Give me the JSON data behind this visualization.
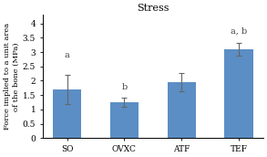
{
  "title": "Stress",
  "categories": [
    "SO",
    "OVXC",
    "ATF",
    "TEF"
  ],
  "values": [
    1.7,
    1.25,
    1.95,
    3.1
  ],
  "errors": [
    0.5,
    0.15,
    0.32,
    0.22
  ],
  "bar_color": "#5b8ec4",
  "error_color": "#666666",
  "ylabel_line1": "Force implied to a unit area",
  "ylabel_line2": "of the bone (MPa)",
  "ylim": [
    0,
    4.3
  ],
  "yticks": [
    0,
    0.5,
    1,
    1.5,
    2,
    2.5,
    3,
    3.5,
    4
  ],
  "ytick_labels": [
    "0",
    "0.5",
    "1",
    "1.5",
    "2",
    "2.5",
    "3",
    "3.5",
    "4"
  ],
  "annotations": [
    "a",
    "b",
    "",
    "a, b"
  ],
  "annotation_offsets": [
    0.52,
    0.2,
    0.0,
    0.25
  ],
  "title_fontsize": 8,
  "label_fontsize": 6,
  "tick_fontsize": 6.5,
  "annot_fontsize": 7,
  "background_color": "#ffffff"
}
